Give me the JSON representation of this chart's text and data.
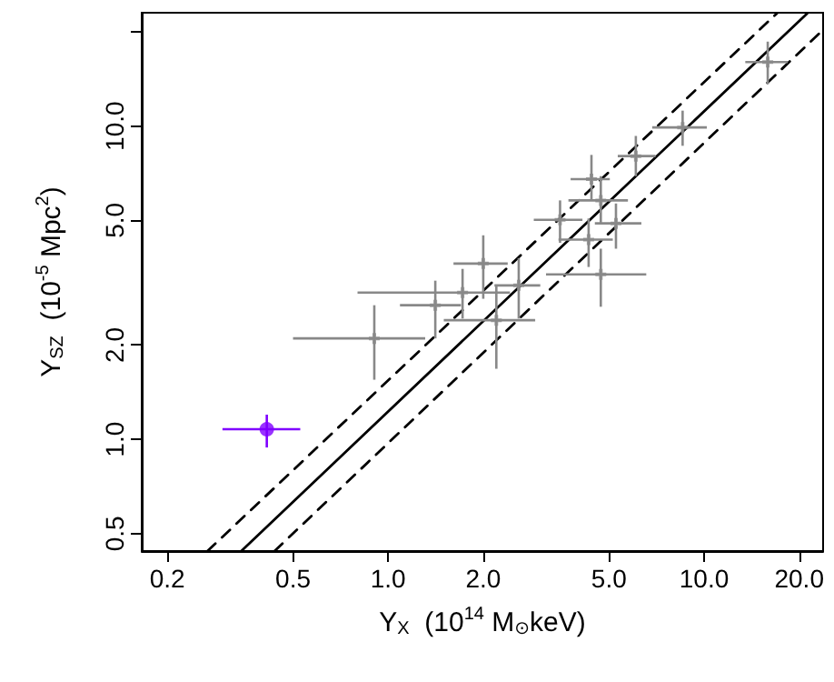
{
  "chart_data": {
    "type": "scatter",
    "xlabel": "Y$_{X}$  (10$^{14}$ M$_{⊙}$keV)",
    "ylabel": "Y$_{SZ}$  (10$^{-5}$ Mpc$^{2}$)",
    "log": "xy",
    "grid": false,
    "xlim": [
      0.166,
      23.8
    ],
    "ylim": [
      0.44,
      23
    ],
    "xticks": [
      0.2,
      0.5,
      {
        "value": 1,
        "label": "1.0"
      },
      {
        "value": 2,
        "label": "2.0"
      },
      {
        "value": 5,
        "label": "5.0"
      },
      {
        "value": 10,
        "label": "10.0"
      },
      {
        "value": 20,
        "label": "20.0"
      }
    ],
    "yticks": [
      0.5,
      {
        "value": 1,
        "label": "1.0"
      },
      {
        "value": 2,
        "label": "2.0"
      },
      {
        "value": 5,
        "label": "5.0"
      },
      {
        "value": 10,
        "label": "10.0"
      },
      {
        "value": 20,
        "label": null
      }
    ],
    "series": [
      {
        "type": "scatter",
        "color": "#888888",
        "marker": "cross",
        "x": [
          0.904,
          1.41,
          1.72,
          2.0,
          2.2,
          2.59,
          3.5,
          4.31,
          4.71,
          4.4,
          4.71,
          5.26,
          6.08,
          8.55,
          15.9
        ],
        "values": [
          2.1,
          2.68,
          2.94,
          3.64,
          2.4,
          3.1,
          5.02,
          4.34,
          3.36,
          6.77,
          5.79,
          4.89,
          8.02,
          9.9,
          16.0
        ],
        "errors": [
          [
            1.55,
            2.68
          ],
          [
            2.1,
            3.21
          ],
          [
            2.43,
            3.5
          ],
          [
            2.81,
            4.48
          ],
          [
            1.68,
            3.1
          ],
          [
            2.43,
            3.79
          ],
          [
            4.24,
            5.79
          ],
          [
            3.55,
            5.07
          ],
          [
            2.65,
            4.06
          ],
          [
            5.79,
            8.09
          ],
          [
            4.85,
            6.92
          ],
          [
            4.06,
            5.66
          ],
          [
            6.92,
            9.3
          ],
          [
            8.65,
            11.2
          ],
          [
            13.6,
            18.6
          ]
        ],
        "xerrors": [
          [
            0.5,
            1.31
          ],
          [
            1.09,
            1.7
          ],
          [
            0.8,
            2.43
          ],
          [
            1.61,
            2.39
          ],
          [
            1.5,
            2.92
          ],
          [
            2.17,
            3.03
          ],
          [
            2.89,
            4.12
          ],
          [
            3.46,
            5.14
          ],
          [
            3.16,
            6.56
          ],
          [
            3.78,
            5.03
          ],
          [
            3.72,
            5.74
          ],
          [
            4.51,
            6.33
          ],
          [
            5.33,
            7.02
          ],
          [
            6.85,
            10.2
          ],
          [
            13.5,
            18.4
          ]
        ]
      },
      {
        "type": "scatter",
        "color": "#7f00ff",
        "marker": "circle",
        "x": [
          0.413
        ],
        "values": [
          1.077
        ],
        "errors": [
          [
            0.942,
            1.199
          ]
        ],
        "xerrors": [
          [
            0.299,
            0.527
          ]
        ]
      },
      {
        "type": "line",
        "color": "#000000",
        "line_style": "solid",
        "x": [
          0.343,
          21.2
        ],
        "values": [
          0.44,
          22.9
        ]
      },
      {
        "type": "line",
        "color": "#000000",
        "line_style": "dashed",
        "x": [
          0.268,
          17.0
        ],
        "values": [
          0.44,
          22.9
        ]
      },
      {
        "type": "line",
        "color": "#000000",
        "line_style": "dashed",
        "x": [
          0.437,
          23.7
        ],
        "values": [
          0.44,
          20.2
        ]
      }
    ]
  }
}
